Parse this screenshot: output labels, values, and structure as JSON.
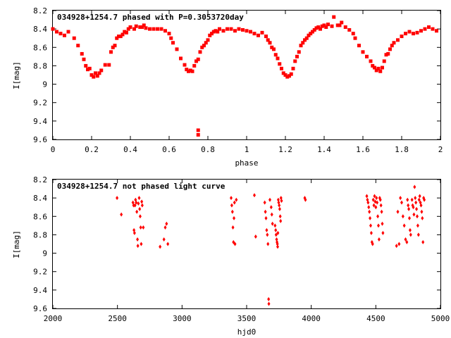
{
  "chart_data": [
    {
      "type": "scatter",
      "title": "034928+1254.7 phased with P=0.3053720day",
      "xlabel": "phase",
      "ylabel": "I[mag]",
      "xlim": [
        0,
        2
      ],
      "ylim": [
        8.2,
        9.6
      ],
      "y_inverted": true,
      "xticks": [
        "0",
        "0.2",
        "0.4",
        "0.6",
        "0.8",
        "1",
        "1.2",
        "1.4",
        "1.6",
        "1.8",
        "2"
      ],
      "yticks": [
        "8.2",
        "8.4",
        "8.6",
        "8.8",
        "9",
        "9.2",
        "9.4",
        "9.6"
      ],
      "color": "#ff0000",
      "marker": "square",
      "points": [
        [
          0.0,
          8.4
        ],
        [
          0.02,
          8.43
        ],
        [
          0.04,
          8.45
        ],
        [
          0.06,
          8.47
        ],
        [
          0.08,
          8.43
        ],
        [
          0.11,
          8.5
        ],
        [
          0.13,
          8.58
        ],
        [
          0.15,
          8.67
        ],
        [
          0.16,
          8.73
        ],
        [
          0.17,
          8.8
        ],
        [
          0.18,
          8.84
        ],
        [
          0.19,
          8.83
        ],
        [
          0.2,
          8.9
        ],
        [
          0.21,
          8.92
        ],
        [
          0.22,
          8.88
        ],
        [
          0.23,
          8.91
        ],
        [
          0.24,
          8.88
        ],
        [
          0.25,
          8.85
        ],
        [
          0.27,
          8.79
        ],
        [
          0.29,
          8.79
        ],
        [
          0.3,
          8.65
        ],
        [
          0.31,
          8.6
        ],
        [
          0.32,
          8.58
        ],
        [
          0.33,
          8.5
        ],
        [
          0.34,
          8.48
        ],
        [
          0.35,
          8.48
        ],
        [
          0.36,
          8.46
        ],
        [
          0.37,
          8.43
        ],
        [
          0.38,
          8.44
        ],
        [
          0.39,
          8.4
        ],
        [
          0.4,
          8.38
        ],
        [
          0.42,
          8.4
        ],
        [
          0.43,
          8.37
        ],
        [
          0.45,
          8.38
        ],
        [
          0.46,
          8.38
        ],
        [
          0.47,
          8.36
        ],
        [
          0.48,
          8.39
        ],
        [
          0.5,
          8.4
        ],
        [
          0.52,
          8.4
        ],
        [
          0.54,
          8.4
        ],
        [
          0.56,
          8.4
        ],
        [
          0.58,
          8.42
        ],
        [
          0.6,
          8.45
        ],
        [
          0.61,
          8.5
        ],
        [
          0.62,
          8.55
        ],
        [
          0.64,
          8.62
        ],
        [
          0.66,
          8.72
        ],
        [
          0.68,
          8.79
        ],
        [
          0.69,
          8.84
        ],
        [
          0.7,
          8.86
        ],
        [
          0.71,
          8.85
        ],
        [
          0.72,
          8.86
        ],
        [
          0.73,
          8.8
        ],
        [
          0.74,
          8.75
        ],
        [
          0.75,
          8.73
        ],
        [
          0.76,
          8.65
        ],
        [
          0.77,
          8.6
        ],
        [
          0.78,
          8.58
        ],
        [
          0.79,
          8.55
        ],
        [
          0.8,
          8.52
        ],
        [
          0.81,
          8.47
        ],
        [
          0.82,
          8.45
        ],
        [
          0.83,
          8.43
        ],
        [
          0.84,
          8.42
        ],
        [
          0.85,
          8.43
        ],
        [
          0.86,
          8.4
        ],
        [
          0.88,
          8.42
        ],
        [
          0.9,
          8.4
        ],
        [
          0.92,
          8.4
        ],
        [
          0.94,
          8.42
        ],
        [
          0.96,
          8.4
        ],
        [
          0.98,
          8.41
        ],
        [
          1.0,
          8.42
        ],
        [
          1.02,
          8.43
        ],
        [
          1.04,
          8.45
        ],
        [
          1.06,
          8.47
        ],
        [
          1.08,
          8.44
        ],
        [
          1.1,
          8.48
        ],
        [
          1.11,
          8.52
        ],
        [
          1.12,
          8.55
        ],
        [
          1.13,
          8.6
        ],
        [
          1.14,
          8.62
        ],
        [
          1.15,
          8.68
        ],
        [
          1.16,
          8.72
        ],
        [
          1.17,
          8.78
        ],
        [
          1.18,
          8.83
        ],
        [
          1.19,
          8.88
        ],
        [
          1.2,
          8.9
        ],
        [
          1.21,
          8.92
        ],
        [
          1.22,
          8.91
        ],
        [
          1.23,
          8.89
        ],
        [
          1.24,
          8.83
        ],
        [
          1.25,
          8.75
        ],
        [
          1.26,
          8.7
        ],
        [
          1.27,
          8.65
        ],
        [
          1.28,
          8.58
        ],
        [
          1.29,
          8.55
        ],
        [
          1.3,
          8.52
        ],
        [
          1.31,
          8.5
        ],
        [
          1.32,
          8.47
        ],
        [
          1.33,
          8.45
        ],
        [
          1.34,
          8.43
        ],
        [
          1.35,
          8.41
        ],
        [
          1.36,
          8.39
        ],
        [
          1.37,
          8.38
        ],
        [
          1.38,
          8.4
        ],
        [
          1.39,
          8.37
        ],
        [
          1.4,
          8.36
        ],
        [
          1.41,
          8.38
        ],
        [
          1.42,
          8.35
        ],
        [
          1.44,
          8.37
        ],
        [
          1.45,
          8.27
        ],
        [
          1.47,
          8.36
        ],
        [
          1.48,
          8.36
        ],
        [
          1.49,
          8.33
        ],
        [
          1.51,
          8.38
        ],
        [
          1.53,
          8.41
        ],
        [
          1.55,
          8.45
        ],
        [
          1.56,
          8.5
        ],
        [
          1.58,
          8.58
        ],
        [
          1.6,
          8.65
        ],
        [
          1.62,
          8.7
        ],
        [
          1.64,
          8.75
        ],
        [
          1.65,
          8.8
        ],
        [
          1.66,
          8.82
        ],
        [
          1.67,
          8.85
        ],
        [
          1.68,
          8.83
        ],
        [
          1.69,
          8.86
        ],
        [
          1.7,
          8.82
        ],
        [
          1.71,
          8.75
        ],
        [
          1.72,
          8.68
        ],
        [
          1.73,
          8.67
        ],
        [
          1.74,
          8.62
        ],
        [
          1.75,
          8.58
        ],
        [
          1.76,
          8.55
        ],
        [
          1.78,
          8.52
        ],
        [
          1.8,
          8.48
        ],
        [
          1.82,
          8.45
        ],
        [
          1.84,
          8.43
        ],
        [
          1.86,
          8.45
        ],
        [
          1.88,
          8.44
        ],
        [
          1.9,
          8.42
        ],
        [
          1.92,
          8.4
        ],
        [
          1.94,
          8.38
        ],
        [
          1.96,
          8.4
        ],
        [
          1.98,
          8.42
        ],
        [
          0.75,
          9.5
        ],
        [
          0.75,
          9.55
        ]
      ]
    },
    {
      "type": "scatter",
      "title": "034928+1254.7 not phased light curve",
      "xlabel": "hjd0",
      "ylabel": "I[mag]",
      "xlim": [
        2000,
        5000
      ],
      "ylim": [
        8.2,
        9.6
      ],
      "y_inverted": true,
      "xticks": [
        "2000",
        "2500",
        "3000",
        "3500",
        "4000",
        "4500",
        "5000"
      ],
      "yticks": [
        "8.2",
        "8.4",
        "8.6",
        "8.8",
        "9",
        "9.2",
        "9.4",
        "9.6"
      ],
      "color": "#ff0000",
      "marker": "diamond",
      "points": [
        [
          2497,
          8.4
        ],
        [
          2530,
          8.58
        ],
        [
          2620,
          8.45
        ],
        [
          2625,
          8.48
        ],
        [
          2628,
          8.75
        ],
        [
          2632,
          8.78
        ],
        [
          2636,
          8.48
        ],
        [
          2640,
          8.42
        ],
        [
          2645,
          8.45
        ],
        [
          2650,
          8.55
        ],
        [
          2655,
          8.85
        ],
        [
          2658,
          8.92
        ],
        [
          2662,
          8.46
        ],
        [
          2668,
          8.4
        ],
        [
          2672,
          8.52
        ],
        [
          2676,
          8.6
        ],
        [
          2680,
          8.72
        ],
        [
          2684,
          8.9
        ],
        [
          2688,
          8.44
        ],
        [
          2692,
          8.48
        ],
        [
          2700,
          8.72
        ],
        [
          2830,
          8.93
        ],
        [
          2860,
          8.85
        ],
        [
          2870,
          8.72
        ],
        [
          2880,
          8.68
        ],
        [
          2890,
          8.9
        ],
        [
          3380,
          8.4
        ],
        [
          3385,
          8.48
        ],
        [
          3390,
          8.55
        ],
        [
          3394,
          8.72
        ],
        [
          3398,
          8.88
        ],
        [
          3402,
          8.62
        ],
        [
          3406,
          8.45
        ],
        [
          3410,
          8.9
        ],
        [
          3420,
          8.42
        ],
        [
          3560,
          8.37
        ],
        [
          3570,
          8.82
        ],
        [
          3640,
          8.45
        ],
        [
          3645,
          8.55
        ],
        [
          3650,
          8.62
        ],
        [
          3655,
          8.75
        ],
        [
          3660,
          8.8
        ],
        [
          3665,
          8.9
        ],
        [
          3670,
          9.5
        ],
        [
          3672,
          9.55
        ],
        [
          3680,
          8.42
        ],
        [
          3690,
          8.5
        ],
        [
          3695,
          8.58
        ],
        [
          3700,
          8.68
        ],
        [
          3720,
          8.7
        ],
        [
          3725,
          8.75
        ],
        [
          3728,
          8.8
        ],
        [
          3732,
          8.85
        ],
        [
          3735,
          8.88
        ],
        [
          3738,
          8.9
        ],
        [
          3740,
          8.93
        ],
        [
          3742,
          8.78
        ],
        [
          3745,
          8.42
        ],
        [
          3748,
          8.45
        ],
        [
          3752,
          8.48
        ],
        [
          3756,
          8.52
        ],
        [
          3760,
          8.6
        ],
        [
          3763,
          8.65
        ],
        [
          3766,
          8.4
        ],
        [
          3770,
          8.43
        ],
        [
          3950,
          8.4
        ],
        [
          3955,
          8.42
        ],
        [
          4430,
          8.38
        ],
        [
          4435,
          8.42
        ],
        [
          4440,
          8.45
        ],
        [
          4445,
          8.5
        ],
        [
          4450,
          8.55
        ],
        [
          4455,
          8.62
        ],
        [
          4460,
          8.7
        ],
        [
          4465,
          8.78
        ],
        [
          4470,
          8.88
        ],
        [
          4475,
          8.9
        ],
        [
          4480,
          8.42
        ],
        [
          4485,
          8.48
        ],
        [
          4490,
          8.38
        ],
        [
          4495,
          8.44
        ],
        [
          4500,
          8.5
        ],
        [
          4505,
          8.4
        ],
        [
          4510,
          8.45
        ],
        [
          4515,
          8.6
        ],
        [
          4520,
          8.7
        ],
        [
          4525,
          8.85
        ],
        [
          4530,
          8.4
        ],
        [
          4535,
          8.42
        ],
        [
          4540,
          8.48
        ],
        [
          4545,
          8.55
        ],
        [
          4550,
          8.68
        ],
        [
          4555,
          8.78
        ],
        [
          4660,
          8.92
        ],
        [
          4670,
          8.55
        ],
        [
          4680,
          8.9
        ],
        [
          4690,
          8.4
        ],
        [
          4700,
          8.45
        ],
        [
          4710,
          8.6
        ],
        [
          4720,
          8.7
        ],
        [
          4730,
          8.85
        ],
        [
          4740,
          8.88
        ],
        [
          4745,
          8.42
        ],
        [
          4750,
          8.48
        ],
        [
          4755,
          8.52
        ],
        [
          4760,
          8.62
        ],
        [
          4765,
          8.75
        ],
        [
          4770,
          8.8
        ],
        [
          4780,
          8.42
        ],
        [
          4785,
          8.48
        ],
        [
          4790,
          8.5
        ],
        [
          4795,
          8.58
        ],
        [
          4800,
          8.28
        ],
        [
          4805,
          8.4
        ],
        [
          4810,
          8.45
        ],
        [
          4815,
          8.52
        ],
        [
          4820,
          8.6
        ],
        [
          4825,
          8.7
        ],
        [
          4830,
          8.8
        ],
        [
          4835,
          8.42
        ],
        [
          4840,
          8.38
        ],
        [
          4845,
          8.45
        ],
        [
          4850,
          8.48
        ],
        [
          4855,
          8.55
        ],
        [
          4860,
          8.62
        ],
        [
          4865,
          8.88
        ],
        [
          4870,
          8.4
        ],
        [
          4875,
          8.42
        ]
      ]
    }
  ]
}
